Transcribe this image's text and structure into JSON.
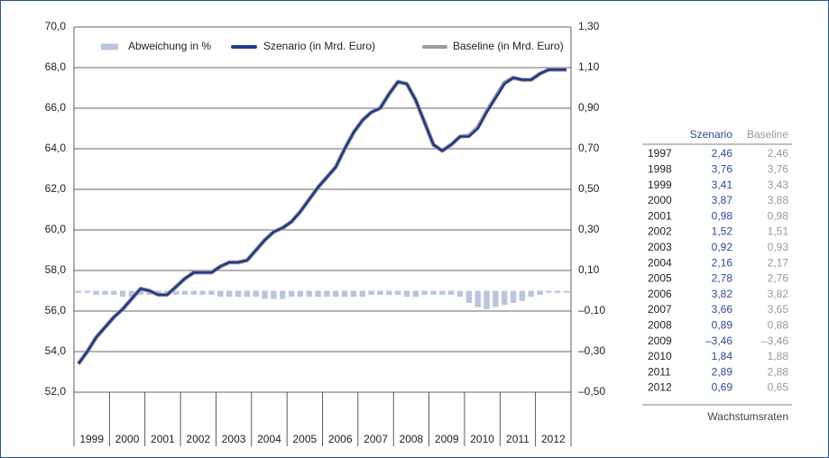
{
  "chart_data": {
    "type": "line",
    "categories": [
      "1999",
      "2000",
      "2001",
      "2002",
      "2003",
      "2004",
      "2005",
      "2006",
      "2007",
      "2008",
      "2009",
      "2010",
      "2011",
      "2012"
    ],
    "x": [
      1999.125,
      1999.375,
      1999.625,
      1999.875,
      2000.125,
      2000.375,
      2000.625,
      2000.875,
      2001.125,
      2001.375,
      2001.625,
      2001.875,
      2002.125,
      2002.375,
      2002.625,
      2002.875,
      2003.125,
      2003.375,
      2003.625,
      2003.875,
      2004.125,
      2004.375,
      2004.625,
      2004.875,
      2005.125,
      2005.375,
      2005.625,
      2005.875,
      2006.125,
      2006.375,
      2006.625,
      2006.875,
      2007.125,
      2007.375,
      2007.625,
      2007.875,
      2008.125,
      2008.375,
      2008.625,
      2008.875,
      2009.125,
      2009.375,
      2009.625,
      2009.875,
      2010.125,
      2010.375,
      2010.625,
      2010.875,
      2011.125,
      2011.375,
      2011.625,
      2011.875,
      2012.125,
      2012.375,
      2012.625,
      2012.875
    ],
    "xlim": [
      1999,
      2013
    ],
    "series": [
      {
        "name": "Abweichung in %",
        "color": "#b9c5de",
        "axis": "y2",
        "kind": "bar",
        "values": [
          -0.01,
          -0.01,
          -0.02,
          -0.02,
          -0.02,
          -0.03,
          -0.03,
          -0.02,
          -0.02,
          -0.02,
          -0.02,
          -0.02,
          -0.02,
          -0.02,
          -0.02,
          -0.02,
          -0.03,
          -0.03,
          -0.03,
          -0.03,
          -0.03,
          -0.04,
          -0.04,
          -0.04,
          -0.03,
          -0.03,
          -0.03,
          -0.03,
          -0.03,
          -0.03,
          -0.03,
          -0.03,
          -0.03,
          -0.02,
          -0.02,
          -0.02,
          -0.02,
          -0.03,
          -0.03,
          -0.02,
          -0.02,
          -0.02,
          -0.02,
          -0.03,
          -0.06,
          -0.08,
          -0.09,
          -0.08,
          -0.07,
          -0.06,
          -0.05,
          -0.03,
          -0.02,
          -0.01,
          -0.01,
          -0.01
        ]
      },
      {
        "name": "Szenario (in Mrd. Euro)",
        "color": "#1f3a8a",
        "kind": "line",
        "values": [
          53.4,
          54.0,
          54.7,
          55.2,
          55.7,
          56.1,
          56.6,
          57.1,
          57.0,
          56.8,
          56.8,
          57.2,
          57.6,
          57.9,
          57.9,
          57.9,
          58.2,
          58.4,
          58.4,
          58.5,
          59.0,
          59.5,
          59.9,
          60.1,
          60.4,
          60.9,
          61.5,
          62.1,
          62.6,
          63.1,
          64.0,
          64.8,
          65.4,
          65.8,
          66.0,
          66.7,
          67.3,
          67.2,
          66.4,
          65.3,
          64.2,
          63.9,
          64.2,
          64.6,
          64.6,
          65.0,
          65.8,
          66.5,
          67.2,
          67.5,
          67.4,
          67.4,
          67.7,
          67.9,
          67.9,
          67.9
        ]
      },
      {
        "name": "Baseline (in Mrd. Euro)",
        "color": "#9a9a9a",
        "kind": "line",
        "values": [
          53.4,
          54.0,
          54.7,
          55.2,
          55.7,
          56.1,
          56.6,
          57.1,
          57.0,
          56.8,
          56.8,
          57.2,
          57.6,
          57.9,
          57.9,
          57.9,
          58.2,
          58.4,
          58.4,
          58.5,
          59.0,
          59.5,
          59.9,
          60.1,
          60.4,
          60.9,
          61.5,
          62.1,
          62.6,
          63.1,
          64.0,
          64.8,
          65.4,
          65.8,
          66.0,
          66.7,
          67.3,
          67.2,
          66.4,
          65.3,
          64.2,
          63.9,
          64.2,
          64.6,
          64.65,
          65.05,
          65.85,
          66.55,
          67.25,
          67.5,
          67.4,
          67.4,
          67.7,
          67.9,
          67.9,
          67.9
        ]
      }
    ],
    "ylim": [
      52,
      70
    ],
    "yticks": [
      {
        "value": 52,
        "label": "52,0"
      },
      {
        "value": 54,
        "label": "54,0"
      },
      {
        "value": 56,
        "label": "56,0"
      },
      {
        "value": 58,
        "label": "58,0"
      },
      {
        "value": 60,
        "label": "60,0"
      },
      {
        "value": 62,
        "label": "62,0"
      },
      {
        "value": 64,
        "label": "64,0"
      },
      {
        "value": 66,
        "label": "66,0"
      },
      {
        "value": 68,
        "label": "68,0"
      },
      {
        "value": 70,
        "label": "70,0"
      }
    ],
    "y2lim": [
      -0.5,
      1.3
    ],
    "y2ticks": [
      {
        "value": -0.5,
        "label": "–0,50"
      },
      {
        "value": -0.3,
        "label": "–0,30"
      },
      {
        "value": -0.1,
        "label": "–0,10"
      },
      {
        "value": 0.1,
        "label": "0,10"
      },
      {
        "value": 0.3,
        "label": "0,30"
      },
      {
        "value": 0.5,
        "label": "0,50"
      },
      {
        "value": 0.7,
        "label": "0,70"
      },
      {
        "value": 0.9,
        "label": "0,90"
      },
      {
        "value": 1.1,
        "label": "1,10"
      },
      {
        "value": 1.3,
        "label": "1,30"
      }
    ],
    "grid": true,
    "legend": "top"
  },
  "table": {
    "headers": [
      "Szenario",
      "Baseline"
    ],
    "rows": [
      [
        "1997",
        "2,46",
        "2,46"
      ],
      [
        "1998",
        "3,76",
        "3,76"
      ],
      [
        "1999",
        "3,41",
        "3,43"
      ],
      [
        "2000",
        "3,87",
        "3,88"
      ],
      [
        "2001",
        "0,98",
        "0,98"
      ],
      [
        "2002",
        "1,52",
        "1,51"
      ],
      [
        "2003",
        "0,92",
        "0,93"
      ],
      [
        "2004",
        "2,16",
        "2,17"
      ],
      [
        "2005",
        "2,78",
        "2,76"
      ],
      [
        "2006",
        "3,82",
        "3,82"
      ],
      [
        "2007",
        "3,66",
        "3,65"
      ],
      [
        "2008",
        "0,89",
        "0,88"
      ],
      [
        "2009",
        "–3,46",
        "–3,46"
      ],
      [
        "2010",
        "1,84",
        "1,88"
      ],
      [
        "2011",
        "2,89",
        "2,88"
      ],
      [
        "2012",
        "0,69",
        "0,65"
      ]
    ],
    "footer": "Wachstumsraten"
  }
}
